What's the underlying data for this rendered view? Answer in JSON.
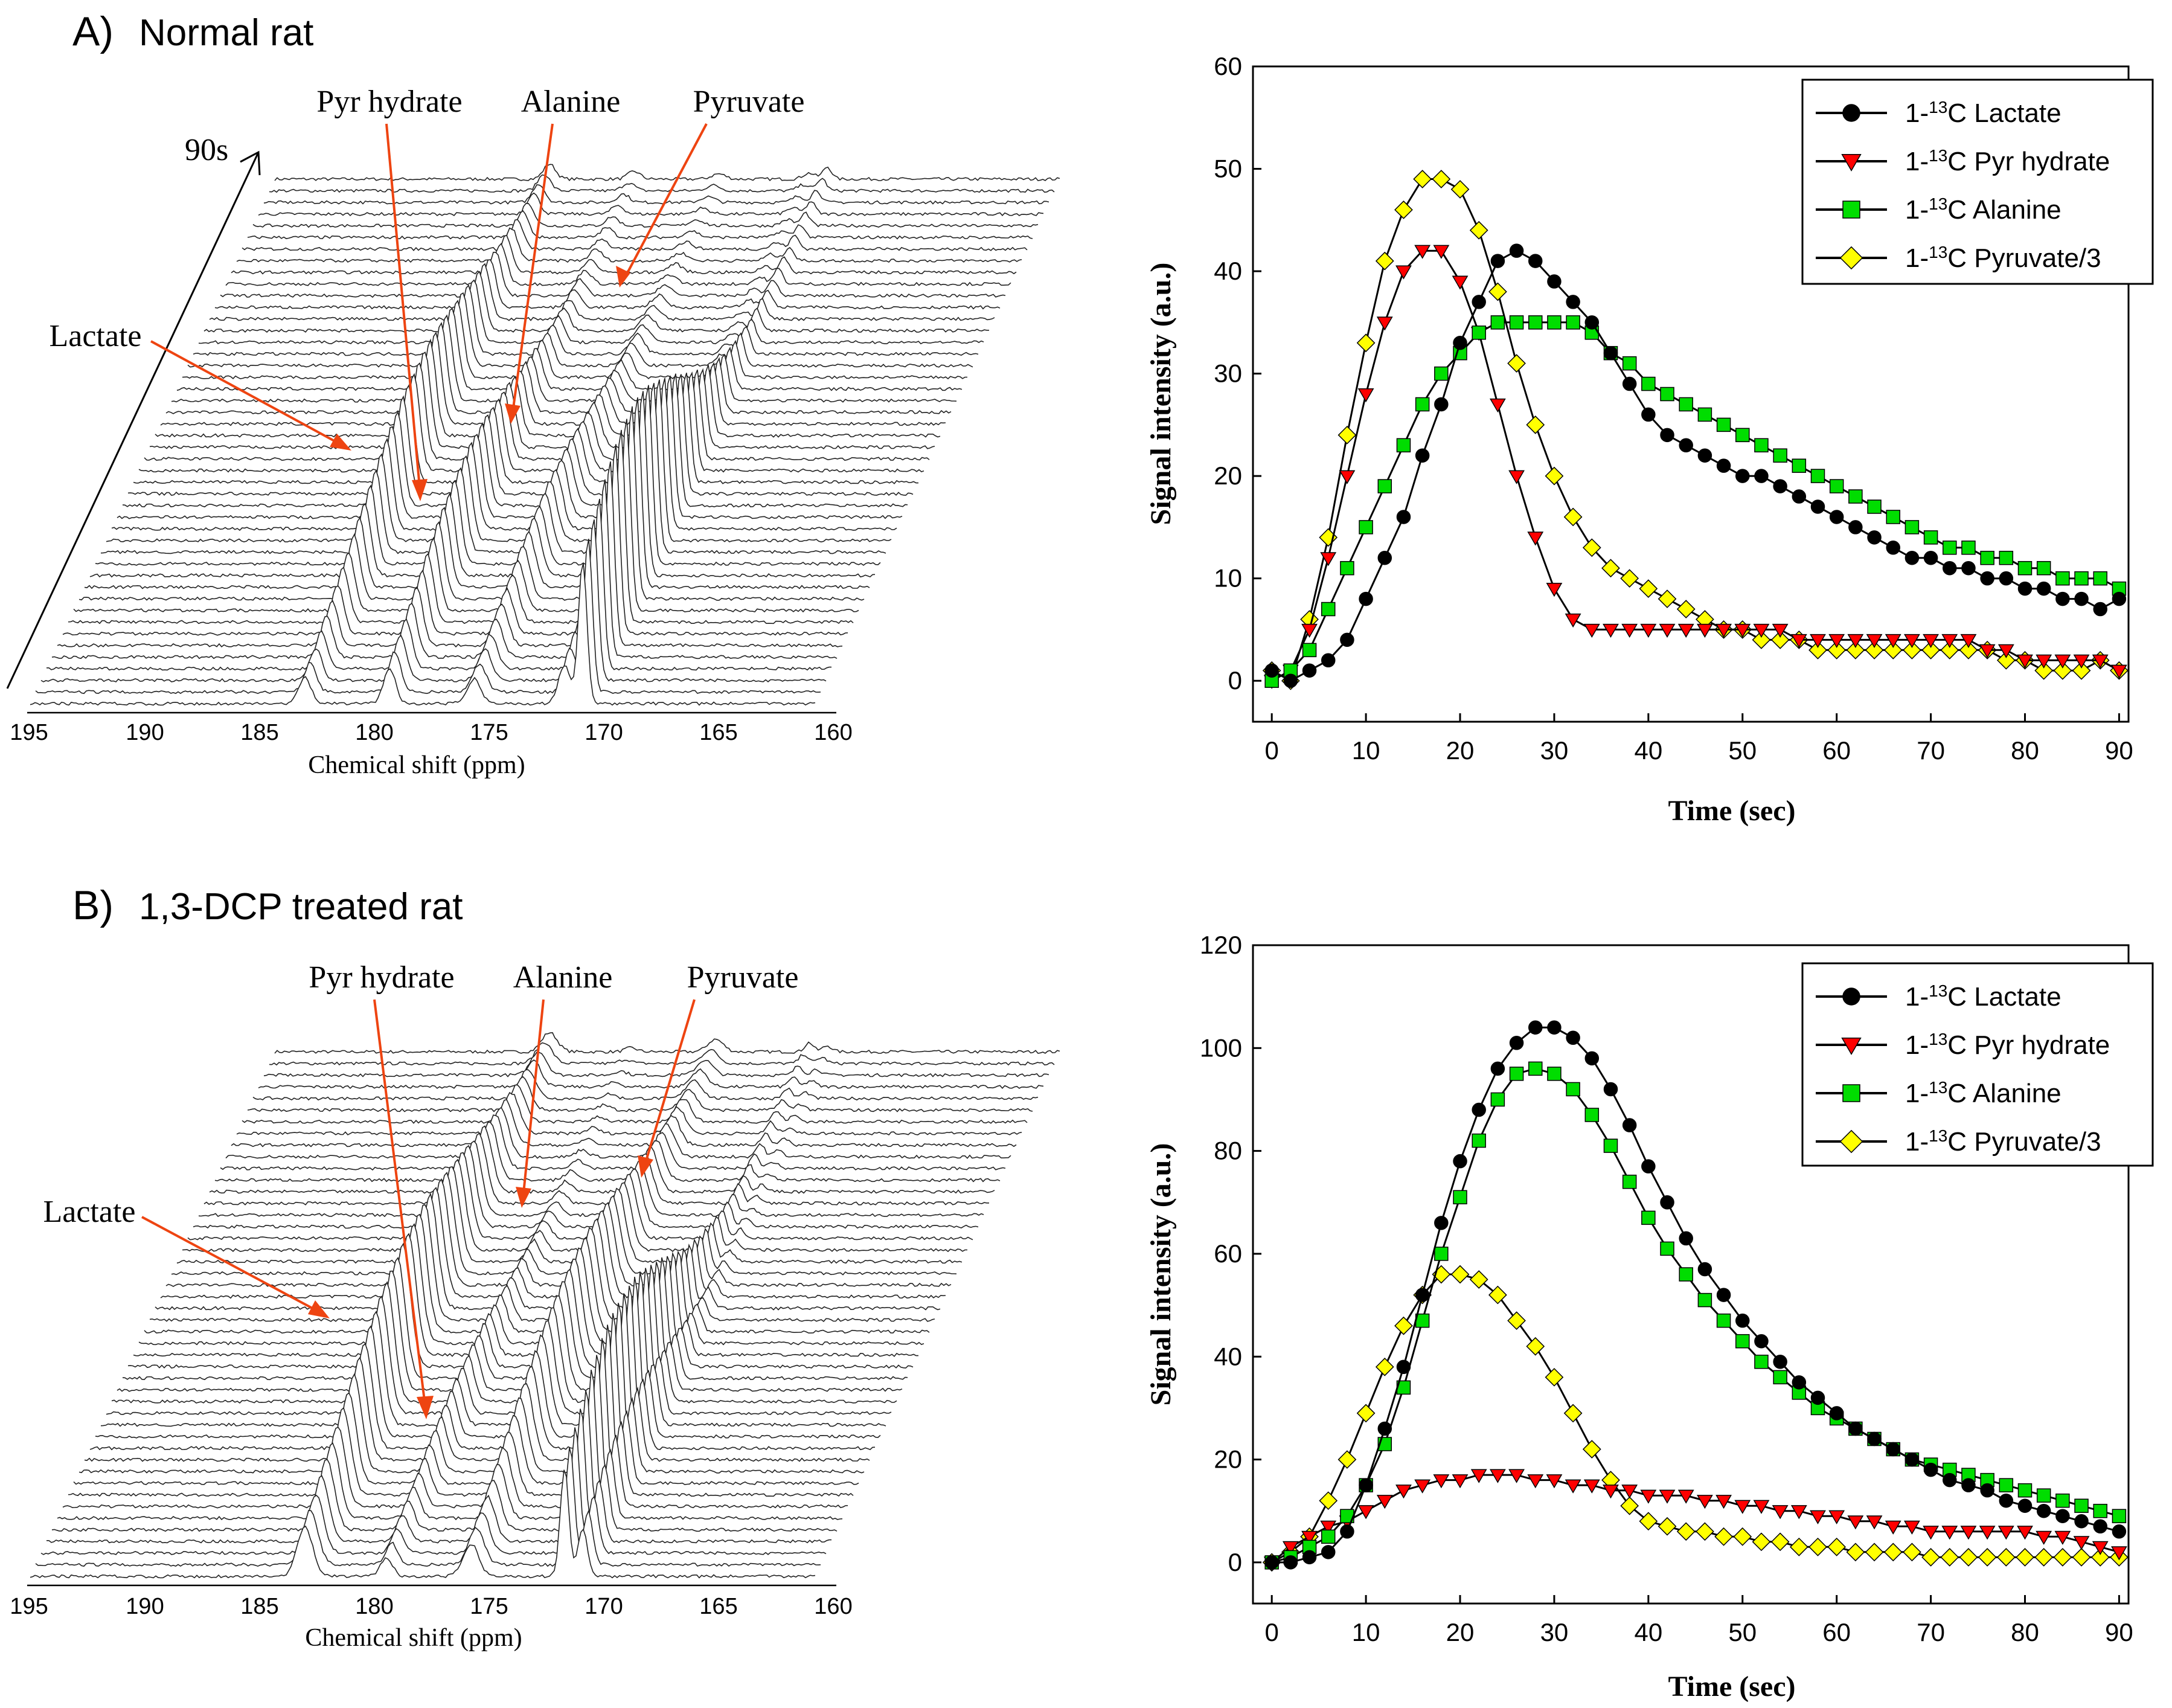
{
  "panels": [
    {
      "id": "A",
      "label": "A)",
      "title": "Normal rat",
      "spectrum": {
        "xlabel": "Chemical shift (ppm)",
        "xticks": [
          "195",
          "190",
          "185",
          "180",
          "175",
          "170",
          "165",
          "160"
        ],
        "time_label": "90s",
        "annotations": [
          "Pyr hydrate",
          "Alanine",
          "Pyruvate",
          "Lactate"
        ]
      }
    },
    {
      "id": "B",
      "label": "B)",
      "title": "1,3-DCP treated rat",
      "spectrum": {
        "xlabel": "Chemical shift (ppm)",
        "xticks": [
          "195",
          "190",
          "185",
          "180",
          "175",
          "170",
          "165",
          "160"
        ],
        "annotations": [
          "Pyr hydrate",
          "Alanine",
          "Pyruvate",
          "Lactate"
        ]
      }
    }
  ],
  "chart_data": [
    {
      "type": "line",
      "panel": "A",
      "xlabel": "Time (sec)",
      "ylabel": "Signal intensity (a.u.)",
      "xlim": [
        -2,
        91
      ],
      "ylim": [
        -4,
        60
      ],
      "xticks": [
        0,
        10,
        20,
        30,
        40,
        50,
        60,
        70,
        80,
        90
      ],
      "yticks": [
        0,
        10,
        20,
        30,
        40,
        50,
        60
      ],
      "legend_position": "top-right",
      "x": [
        0,
        2,
        4,
        6,
        8,
        10,
        12,
        14,
        16,
        18,
        20,
        22,
        24,
        26,
        28,
        30,
        32,
        34,
        36,
        38,
        40,
        42,
        44,
        46,
        48,
        50,
        52,
        54,
        56,
        58,
        60,
        62,
        64,
        66,
        68,
        70,
        72,
        74,
        76,
        78,
        80,
        82,
        84,
        86,
        88,
        90
      ],
      "series": [
        {
          "name": "1-13C Lactate",
          "label_prefix": "1-",
          "label_sup": "13",
          "label_suffix": "C Lactate",
          "color": "#000000",
          "marker": "circle",
          "values": [
            1,
            0,
            1,
            2,
            4,
            8,
            12,
            16,
            22,
            27,
            33,
            37,
            41,
            42,
            41,
            39,
            37,
            35,
            32,
            29,
            26,
            24,
            23,
            22,
            21,
            20,
            20,
            19,
            18,
            17,
            16,
            15,
            14,
            13,
            12,
            12,
            11,
            11,
            10,
            10,
            9,
            9,
            8,
            8,
            7,
            8
          ]
        },
        {
          "name": "1-13C Pyr hydrate",
          "label_prefix": "1-",
          "label_sup": "13",
          "label_suffix": "C Pyr hydrate",
          "color": "#ff0000",
          "marker": "triangle-down",
          "values": [
            0,
            1,
            5,
            12,
            20,
            28,
            35,
            40,
            42,
            42,
            39,
            34,
            27,
            20,
            14,
            9,
            6,
            5,
            5,
            5,
            5,
            5,
            5,
            5,
            5,
            5,
            5,
            5,
            4,
            4,
            4,
            4,
            4,
            4,
            4,
            4,
            4,
            4,
            3,
            3,
            2,
            2,
            2,
            2,
            2,
            1
          ]
        },
        {
          "name": "1-13C Alanine",
          "label_prefix": "1-",
          "label_sup": "13",
          "label_suffix": "C Alanine",
          "color": "#00dd00",
          "marker": "square",
          "values": [
            0,
            1,
            3,
            7,
            11,
            15,
            19,
            23,
            27,
            30,
            32,
            34,
            35,
            35,
            35,
            35,
            35,
            34,
            32,
            31,
            29,
            28,
            27,
            26,
            25,
            24,
            23,
            22,
            21,
            20,
            19,
            18,
            17,
            16,
            15,
            14,
            13,
            13,
            12,
            12,
            11,
            11,
            10,
            10,
            10,
            9
          ]
        },
        {
          "name": "1-13C Pyruvate/3",
          "label_prefix": "1-",
          "label_sup": "13",
          "label_suffix": "C Pyruvate/3",
          "color": "#ffff00",
          "marker": "diamond",
          "values": [
            1,
            0,
            6,
            14,
            24,
            33,
            41,
            46,
            49,
            49,
            48,
            44,
            38,
            31,
            25,
            20,
            16,
            13,
            11,
            10,
            9,
            8,
            7,
            6,
            5,
            5,
            4,
            4,
            4,
            3,
            3,
            3,
            3,
            3,
            3,
            3,
            3,
            3,
            3,
            2,
            2,
            1,
            1,
            1,
            2,
            1
          ]
        }
      ]
    },
    {
      "type": "line",
      "panel": "B",
      "xlabel": "Time (sec)",
      "ylabel": "Signal intensity (a.u.)",
      "xlim": [
        -2,
        91
      ],
      "ylim": [
        -8,
        120
      ],
      "xticks": [
        0,
        10,
        20,
        30,
        40,
        50,
        60,
        70,
        80,
        90
      ],
      "yticks": [
        0,
        20,
        40,
        60,
        80,
        100,
        120
      ],
      "legend_position": "top-right",
      "x": [
        0,
        2,
        4,
        6,
        8,
        10,
        12,
        14,
        16,
        18,
        20,
        22,
        24,
        26,
        28,
        30,
        32,
        34,
        36,
        38,
        40,
        42,
        44,
        46,
        48,
        50,
        52,
        54,
        56,
        58,
        60,
        62,
        64,
        66,
        68,
        70,
        72,
        74,
        76,
        78,
        80,
        82,
        84,
        86,
        88,
        90
      ],
      "series": [
        {
          "name": "1-13C Lactate",
          "label_prefix": "1-",
          "label_sup": "13",
          "label_suffix": "C Lactate",
          "color": "#000000",
          "marker": "circle",
          "values": [
            0,
            0,
            1,
            2,
            6,
            15,
            26,
            38,
            52,
            66,
            78,
            88,
            96,
            101,
            104,
            104,
            102,
            98,
            92,
            85,
            77,
            70,
            63,
            57,
            52,
            47,
            43,
            39,
            35,
            32,
            29,
            26,
            24,
            22,
            20,
            18,
            16,
            15,
            14,
            12,
            11,
            10,
            9,
            8,
            7,
            6
          ]
        },
        {
          "name": "1-13C Pyr hydrate",
          "label_prefix": "1-",
          "label_sup": "13",
          "label_suffix": "C Pyr hydrate",
          "color": "#ff0000",
          "marker": "triangle-down",
          "values": [
            0,
            3,
            5,
            7,
            8,
            10,
            12,
            14,
            15,
            16,
            16,
            17,
            17,
            17,
            16,
            16,
            15,
            15,
            14,
            14,
            13,
            13,
            13,
            12,
            12,
            11,
            11,
            10,
            10,
            9,
            9,
            8,
            8,
            7,
            7,
            6,
            6,
            6,
            6,
            6,
            6,
            5,
            5,
            4,
            3,
            2
          ]
        },
        {
          "name": "1-13C Alanine",
          "label_prefix": "1-",
          "label_sup": "13",
          "label_suffix": "C Alanine",
          "color": "#00dd00",
          "marker": "square",
          "values": [
            0,
            1,
            3,
            5,
            9,
            15,
            23,
            34,
            47,
            60,
            71,
            82,
            90,
            95,
            96,
            95,
            92,
            87,
            81,
            74,
            67,
            61,
            56,
            51,
            47,
            43,
            39,
            36,
            33,
            30,
            28,
            26,
            24,
            22,
            20,
            19,
            18,
            17,
            16,
            15,
            14,
            13,
            12,
            11,
            10,
            9
          ]
        },
        {
          "name": "1-13C Pyruvate/3",
          "label_prefix": "1-",
          "label_sup": "13",
          "label_suffix": "C Pyruvate/3",
          "color": "#ffff00",
          "marker": "diamond",
          "values": [
            0,
            2,
            5,
            12,
            20,
            29,
            38,
            46,
            52,
            56,
            56,
            55,
            52,
            47,
            42,
            36,
            29,
            22,
            16,
            11,
            8,
            7,
            6,
            6,
            5,
            5,
            4,
            4,
            3,
            3,
            3,
            2,
            2,
            2,
            2,
            1,
            1,
            1,
            1,
            1,
            1,
            1,
            1,
            1,
            1,
            1
          ]
        }
      ]
    }
  ]
}
